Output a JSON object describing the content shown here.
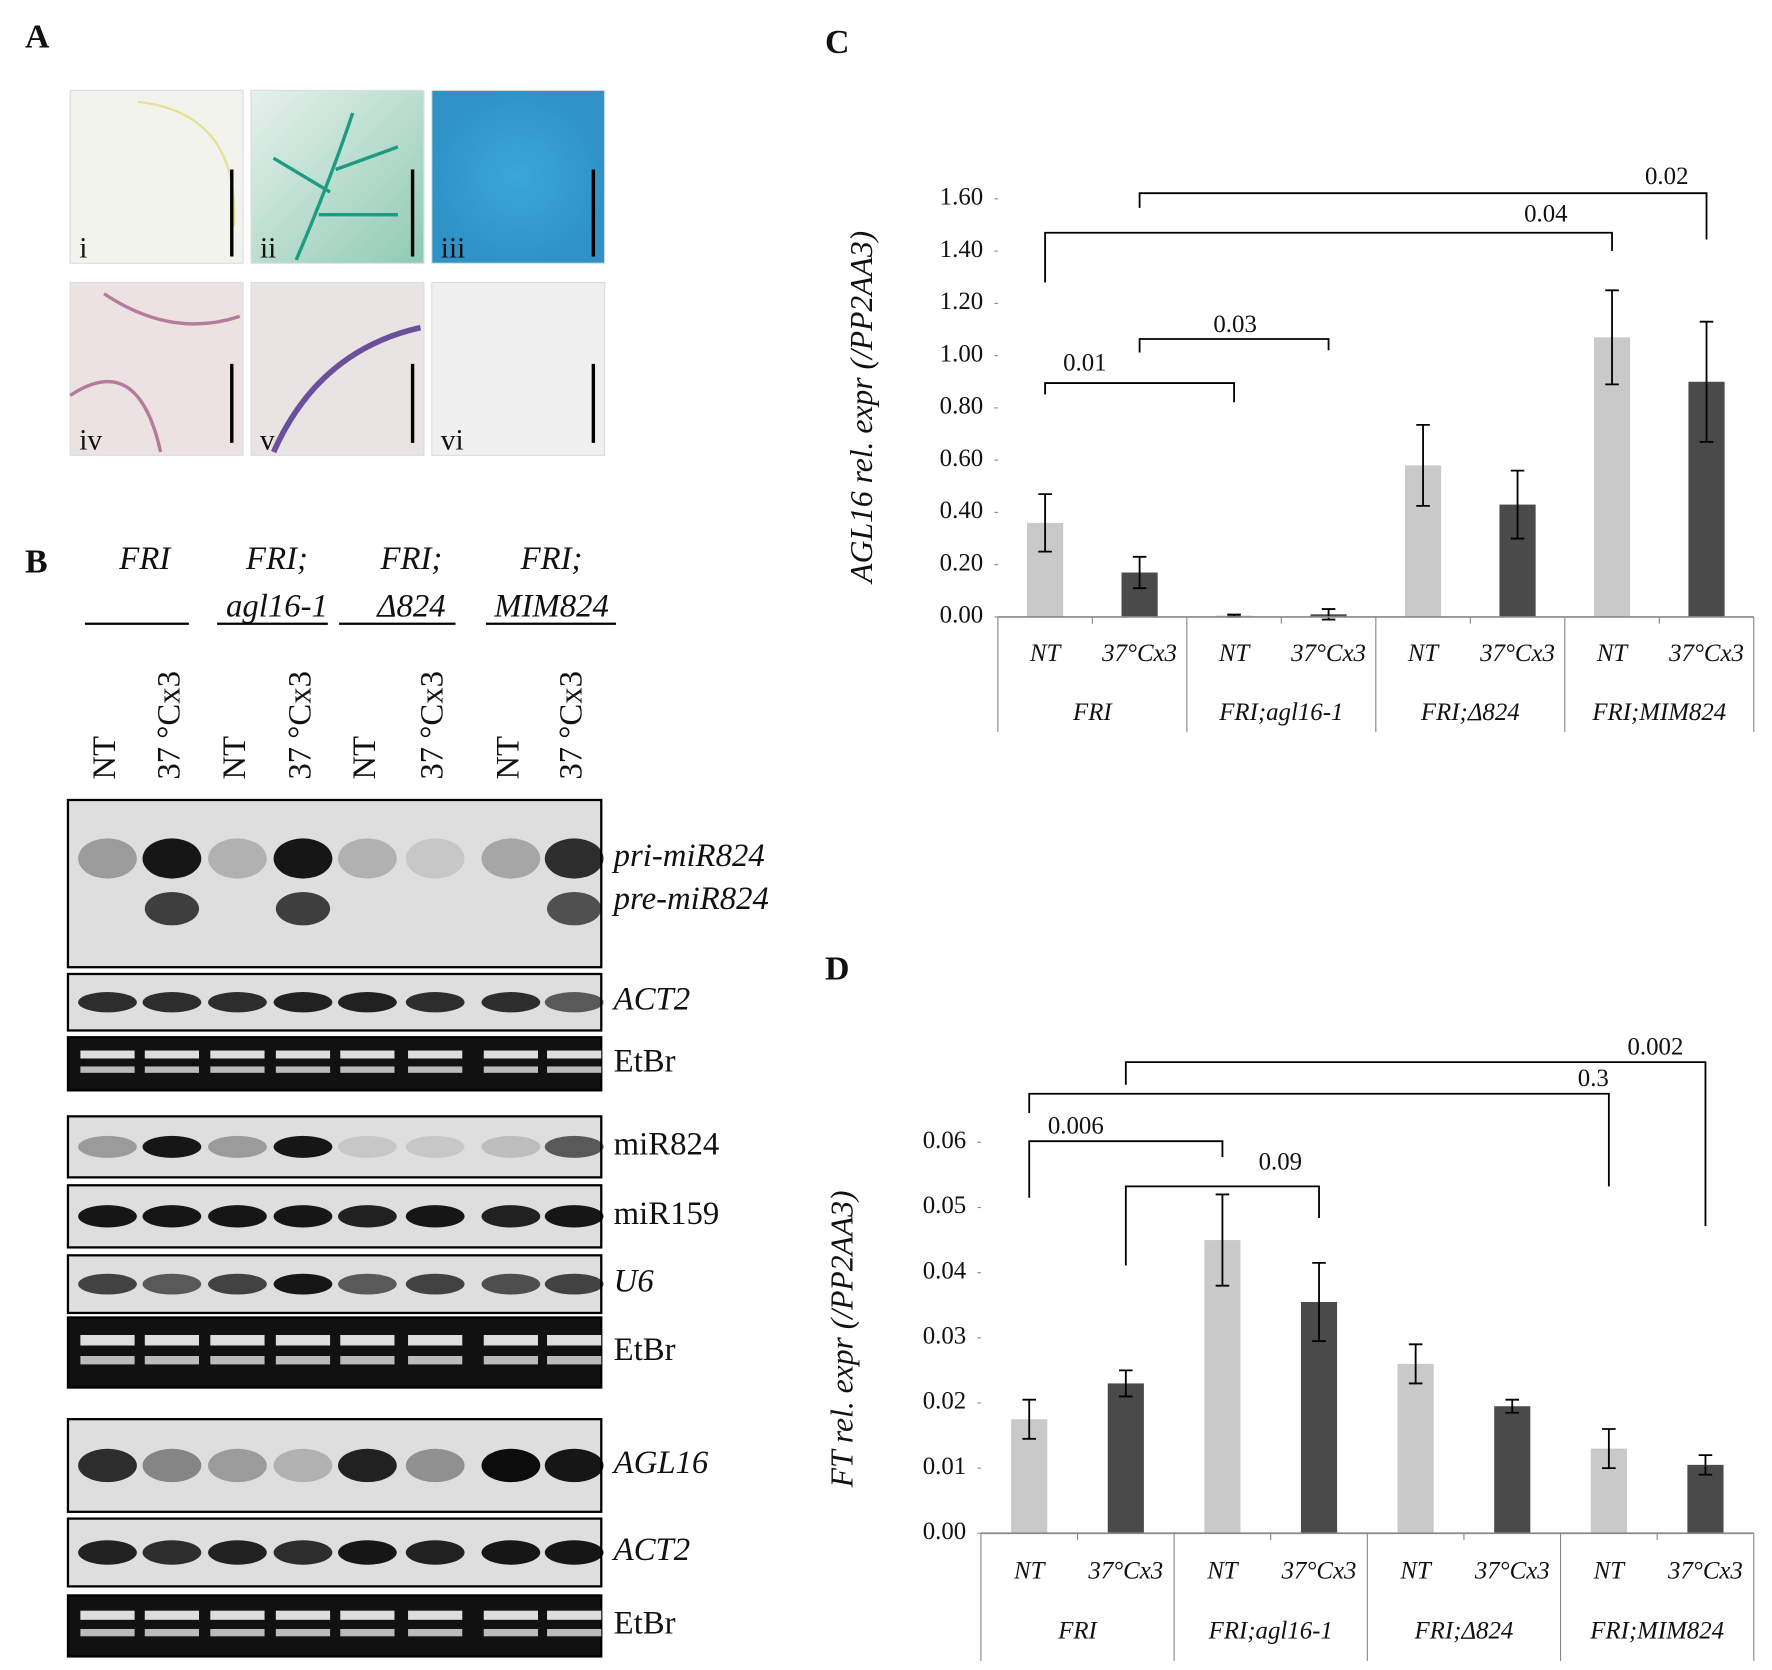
{
  "panel_a": {
    "label": "A",
    "images": [
      "i",
      "ii",
      "iii",
      "iv",
      "v",
      "vi"
    ]
  },
  "panel_b": {
    "label": "B",
    "genotypes": [
      [
        "FRI"
      ],
      [
        "FRI;",
        "agl16-1"
      ],
      [
        "FRI;",
        "Δ824"
      ],
      [
        "FRI;",
        "MIM824"
      ]
    ],
    "lanes": [
      "NT",
      "37 °Cx3"
    ],
    "blots": [
      {
        "labels": [
          "pri-miR824",
          "pre-miR824"
        ],
        "italic": true
      },
      {
        "labels": [
          "ACT2"
        ],
        "italic": true
      },
      {
        "labels": [
          "EtBr"
        ],
        "italic": false
      },
      {
        "labels": [
          "miR824"
        ],
        "italic": false
      },
      {
        "labels": [
          "miR159"
        ],
        "italic": false
      },
      {
        "labels": [
          "U6"
        ],
        "italic": true
      },
      {
        "labels": [
          "EtBr"
        ],
        "italic": false
      },
      {
        "labels": [
          "AGL16"
        ],
        "italic": true
      },
      {
        "labels": [
          "ACT2"
        ],
        "italic": true
      },
      {
        "labels": [
          "EtBr"
        ],
        "italic": false
      }
    ]
  },
  "chart_data": [
    {
      "type": "bar",
      "label": "C",
      "ylabel": "AGL16  rel. expr (/PP2AA3)",
      "categories": [
        "FRI",
        "FRI;agl16-1",
        "FRI;Δ824",
        "FRI;MIM824"
      ],
      "series": [
        {
          "name": "NT",
          "color": "#c9c9c9",
          "values": [
            0.36,
            0.005,
            0.58,
            1.07
          ],
          "errors": [
            0.11,
            0.004,
            0.155,
            0.18
          ]
        },
        {
          "name": "37°Cx3",
          "color": "#4a4a4a",
          "values": [
            0.17,
            0.01,
            0.43,
            0.9
          ],
          "errors": [
            0.06,
            0.02,
            0.13,
            0.23
          ]
        }
      ],
      "ylim": [
        0,
        1.6
      ],
      "yticks": [
        {
          "value": 0,
          "label": "0.00"
        },
        {
          "value": 0.2,
          "label": "0.20"
        },
        {
          "value": 0.4,
          "label": "0.40"
        },
        {
          "value": 0.6,
          "label": "0.60"
        },
        {
          "value": 0.8,
          "label": "0.80"
        },
        {
          "value": 1.0,
          "label": "1.00"
        },
        {
          "value": 1.2,
          "label": "1.20"
        },
        {
          "value": 1.4,
          "label": "1.40"
        },
        {
          "value": 1.6,
          "label": "1.60"
        }
      ],
      "annotations": [
        "0.01",
        "0.03",
        "0.04",
        "0.02"
      ]
    },
    {
      "type": "bar",
      "label": "D",
      "ylabel": "FT  rel. expr (/PP2AA3)",
      "categories": [
        "FRI",
        "FRI;agl16-1",
        "FRI;Δ824",
        "FRI;MIM824"
      ],
      "series": [
        {
          "name": "NT",
          "color": "#c9c9c9",
          "values": [
            0.0175,
            0.045,
            0.026,
            0.013
          ],
          "errors": [
            0.003,
            0.007,
            0.003,
            0.003
          ]
        },
        {
          "name": "37°Cx3",
          "color": "#4a4a4a",
          "values": [
            0.023,
            0.0355,
            0.0195,
            0.0105
          ],
          "errors": [
            0.002,
            0.006,
            0.001,
            0.0015
          ]
        }
      ],
      "ylim": [
        0,
        0.06
      ],
      "yticks": [
        {
          "value": 0,
          "label": "0.00"
        },
        {
          "value": 0.01,
          "label": "0.01"
        },
        {
          "value": 0.02,
          "label": "0.02"
        },
        {
          "value": 0.03,
          "label": "0.03"
        },
        {
          "value": 0.04,
          "label": "0.04"
        },
        {
          "value": 0.05,
          "label": "0.05"
        },
        {
          "value": 0.06,
          "label": "0.06"
        }
      ],
      "annotations": [
        "0.006",
        "0.09",
        "0.3",
        "0.002"
      ]
    }
  ]
}
